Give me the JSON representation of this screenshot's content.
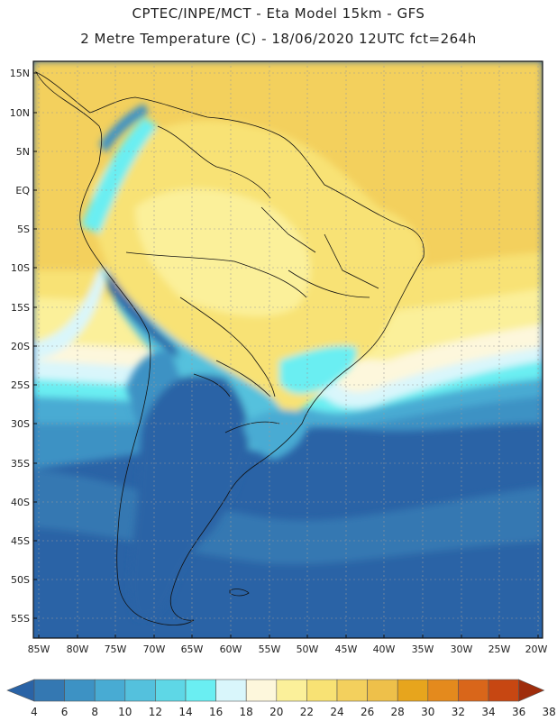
{
  "header": {
    "line1": "CPTEC/INPE/MCT  -   Eta Model 15km  -  GFS",
    "line2": "2 Metre Temperature (C) - 18/06/2020 12UTC fct=264h"
  },
  "axes": {
    "lat_labels": [
      "15N",
      "10N",
      "5N",
      "EQ",
      "5S",
      "10S",
      "15S",
      "20S",
      "25S",
      "30S",
      "35S",
      "40S",
      "45S",
      "50S",
      "55S"
    ],
    "lon_labels": [
      "85W",
      "80W",
      "75W",
      "70W",
      "65W",
      "60W",
      "55W",
      "50W",
      "45W",
      "40W",
      "35W",
      "30W",
      "25W",
      "20W"
    ]
  },
  "colorbar": {
    "labels": [
      "4",
      "6",
      "8",
      "10",
      "12",
      "14",
      "16",
      "18",
      "20",
      "22",
      "24",
      "26",
      "28",
      "30",
      "32",
      "34",
      "36",
      "38"
    ],
    "colors": [
      "#2a63a6",
      "#3478b2",
      "#3d92c4",
      "#48abd3",
      "#54c1dd",
      "#5ed7e6",
      "#6aeef2",
      "#d9f6fb",
      "#fdf7dc",
      "#fbf09a",
      "#f8e274",
      "#f3d05d",
      "#eec04a",
      "#e7a51d",
      "#e48a1d",
      "#d9661a",
      "#c74712",
      "#9f2d0c"
    ]
  },
  "chart_data": {
    "type": "heatmap",
    "title": "2 Metre Temperature (C) - 18/06/2020 12UTC fct=264h",
    "model": "Eta Model 15km - GFS",
    "lon_range": [
      -86,
      -20
    ],
    "lat_range": [
      -58,
      16.5
    ],
    "units": "C",
    "levels": [
      4,
      6,
      8,
      10,
      12,
      14,
      16,
      18,
      20,
      22,
      24,
      26,
      28,
      30,
      32,
      34,
      36,
      38
    ]
  }
}
